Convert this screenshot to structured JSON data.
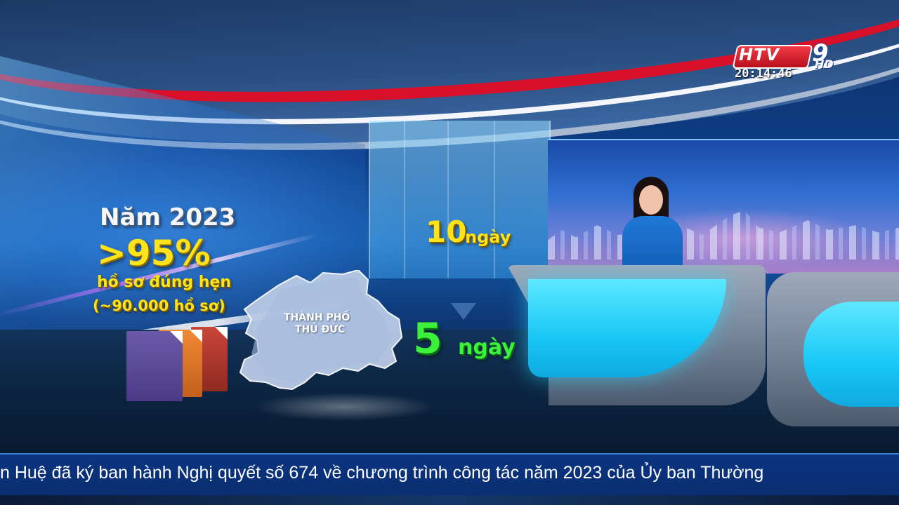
{
  "channel": {
    "logo_text": "HTV",
    "logo_number": "9",
    "logo_quality": "HD",
    "time": "20:14:46"
  },
  "graphic": {
    "year_label": "Năm 2023",
    "percent": ">95%",
    "desc_line1": "hồ sơ đúng hẹn",
    "desc_line2": "(~90.000 hồ sơ)",
    "map_label_line1": "THÀNH PHỐ",
    "map_label_line2": "THỦ ĐỨC",
    "days_before_number": "10",
    "days_before_unit": "ngày",
    "days_after_number": "5",
    "days_after_unit": "ngày"
  },
  "ticker": {
    "text": "n Huệ đã ký ban hành Nghị quyết số 674 về chương trình công tác năm 2023 của Ủy ban Thường"
  },
  "colors": {
    "highlight_yellow": "#ffe31a",
    "highlight_green": "#3cf03c",
    "ticker_blue": "#0b3480",
    "logo_red": "#d8102a"
  }
}
